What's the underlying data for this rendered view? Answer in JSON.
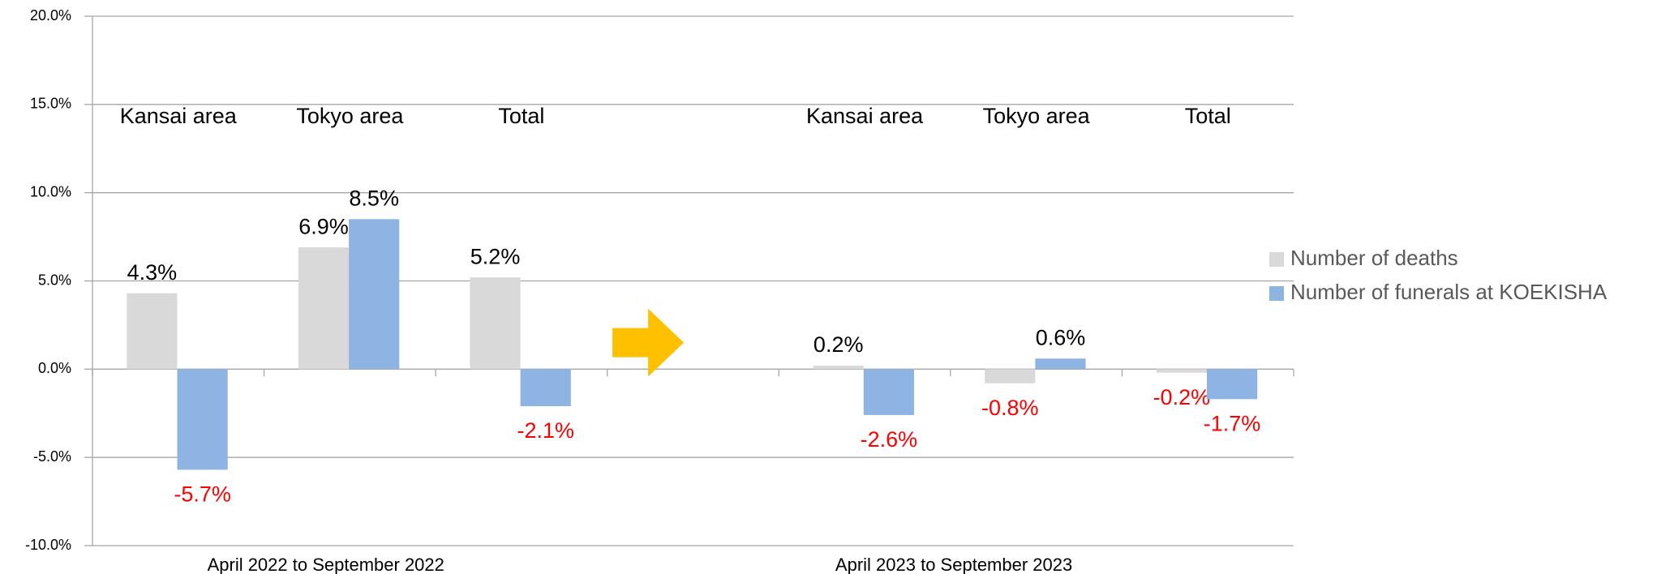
{
  "chart_data": {
    "type": "bar",
    "categories": [
      "Kansai area",
      "Tokyo area",
      "Total",
      null,
      "Kansai area",
      "Tokyo area",
      "Total"
    ],
    "group_labels": [
      "April 2022 to September 2022",
      "April 2023 to September 2023"
    ],
    "series": [
      {
        "name": "Number of deaths",
        "color": "#d9d9d9",
        "values": [
          4.3,
          6.9,
          5.2,
          null,
          0.2,
          -0.8,
          -0.2
        ],
        "value_labels": [
          "4.3%",
          "6.9%",
          "5.2%",
          null,
          "0.2%",
          "-0.8%",
          "-0.2%"
        ]
      },
      {
        "name": "Number of funerals at KOEKISHA",
        "color": "#8eb4e3",
        "values": [
          -5.7,
          8.5,
          -2.1,
          null,
          -2.6,
          0.6,
          -1.7
        ],
        "value_labels": [
          "-5.7%",
          "8.5%",
          "-2.1%",
          null,
          "-2.6%",
          "0.6%",
          "-1.7%"
        ]
      }
    ],
    "ylim": [
      -10,
      20
    ],
    "yticks": [
      {
        "value": -10,
        "label": "-10.0%"
      },
      {
        "value": -5,
        "label": "-5.0%"
      },
      {
        "value": 0,
        "label": "0.0%"
      },
      {
        "value": 5,
        "label": "5.0%"
      },
      {
        "value": 10,
        "label": "10.0%"
      },
      {
        "value": 15,
        "label": "15.0%"
      },
      {
        "value": 20,
        "label": "20.0%"
      }
    ],
    "grid": true,
    "legend": "right",
    "negative_label_color": "#ff0000"
  }
}
